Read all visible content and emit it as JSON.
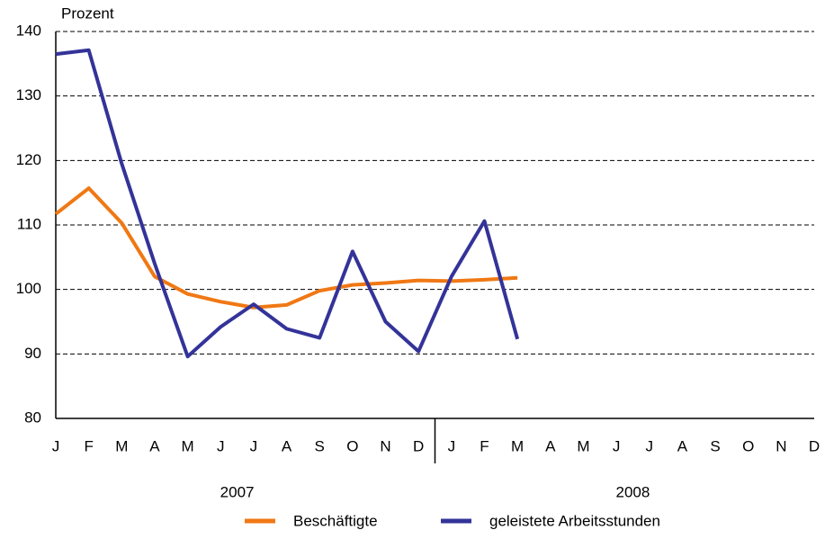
{
  "chart_data": {
    "type": "line",
    "y_label": "Prozent",
    "categories": [
      "J",
      "F",
      "M",
      "A",
      "M",
      "J",
      "J",
      "A",
      "S",
      "O",
      "N",
      "D",
      "J",
      "F",
      "M",
      "A",
      "M",
      "J",
      "J",
      "A",
      "S",
      "O",
      "N",
      "D"
    ],
    "years": [
      "2007",
      "2008"
    ],
    "series": [
      {
        "name": "Beschäftigte",
        "color": "#f07814",
        "values": [
          111.7,
          115.7,
          110.3,
          102,
          99.3,
          98.1,
          97.2,
          97.6,
          99.8,
          100.7,
          101,
          101.4,
          101.3,
          101.5,
          101.8,
          null,
          null,
          null,
          null,
          null,
          null,
          null,
          null,
          null
        ]
      },
      {
        "name": "geleistete Arbeitsstunden",
        "color": "#333399",
        "values": [
          136.5,
          137.1,
          119.5,
          104,
          89.6,
          94.2,
          97.7,
          93.9,
          92.5,
          105.9,
          95,
          90.4,
          102,
          110.6,
          92.3,
          null,
          null,
          null,
          null,
          null,
          null,
          null,
          null,
          null
        ]
      }
    ],
    "ylim": [
      80,
      140
    ],
    "yticks": [
      80,
      90,
      100,
      110,
      120,
      130,
      140
    ],
    "grid": true
  }
}
